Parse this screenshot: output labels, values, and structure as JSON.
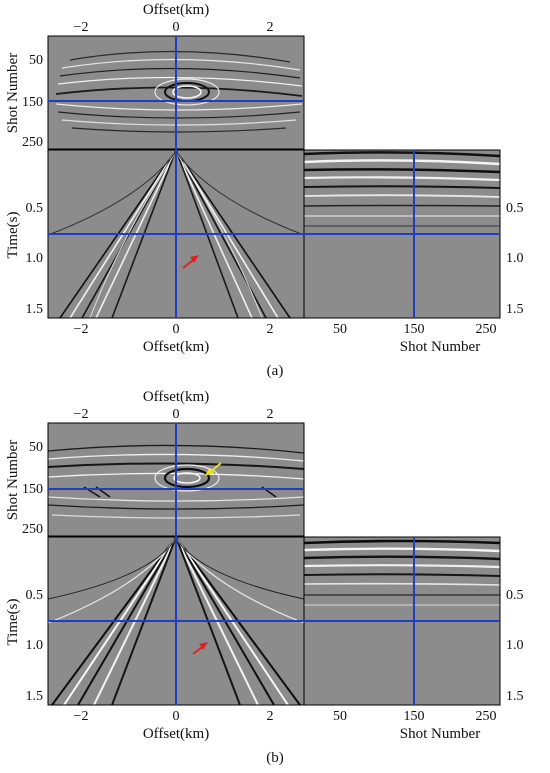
{
  "panels": [
    {
      "caption": "(a)",
      "top_axis_label": "Offset(km)",
      "top_ticks": [
        "−2",
        "0",
        "2"
      ],
      "shot_axis_label": "Shot Number",
      "shot_ticks": [
        "50",
        "150",
        "250"
      ],
      "time_axis_label": "Time(s)",
      "time_ticks": [
        "0.5",
        "1.0",
        "1.5"
      ],
      "bottom_offset_label": "Offset(km)",
      "bottom_offset_ticks": [
        "−2",
        "0",
        "2"
      ],
      "bottom_shot_label": "Shot Number",
      "bottom_shot_ticks": [
        "50",
        "150",
        "250"
      ],
      "right_time_ticks": [
        "0.5",
        "1.0",
        "1.5"
      ],
      "crosshair": {
        "offset_km": 0.0,
        "shot": 150,
        "time_s": 0.8
      },
      "arrows": [
        "red"
      ]
    },
    {
      "caption": "(b)",
      "top_axis_label": "Offset(km)",
      "top_ticks": [
        "−2",
        "0",
        "2"
      ],
      "shot_axis_label": "Shot Number",
      "shot_ticks": [
        "50",
        "150",
        "250"
      ],
      "time_axis_label": "Time(s)",
      "time_ticks": [
        "0.5",
        "1.0",
        "1.5"
      ],
      "bottom_offset_label": "Offset(km)",
      "bottom_offset_ticks": [
        "−2",
        "0",
        "2"
      ],
      "bottom_shot_label": "Shot Number",
      "bottom_shot_ticks": [
        "50",
        "150",
        "250"
      ],
      "right_time_ticks": [
        "0.5",
        "1.0",
        "1.5"
      ],
      "crosshair": {
        "offset_km": 0.0,
        "shot": 150,
        "time_s": 0.8
      },
      "arrows": [
        "yellow",
        "red"
      ]
    }
  ],
  "colors": {
    "crosshair": "#1f3fbf",
    "seismic_bg": "#8c8c8c",
    "red_arrow": "#e02020",
    "yellow_arrow": "#f0e020"
  }
}
